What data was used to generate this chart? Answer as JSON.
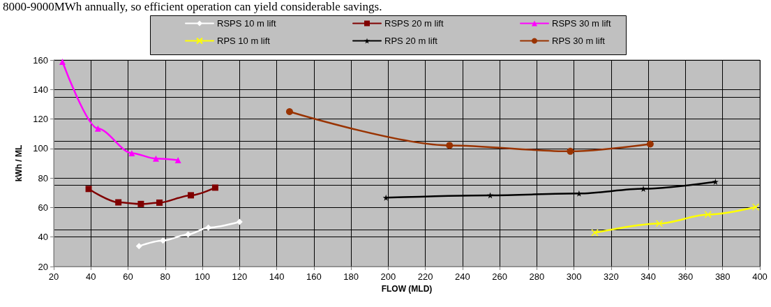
{
  "chart_data": {
    "type": "line",
    "annotations": [
      "8000-9000MWh annually, so efficient operation can yield considerable savings."
    ],
    "xlabel": "FLOW (MLD)",
    "ylabel": "kWh / ML",
    "xlim": [
      20,
      400
    ],
    "xticks": [
      20,
      40,
      60,
      80,
      100,
      120,
      140,
      160,
      180,
      200,
      220,
      240,
      260,
      280,
      300,
      320,
      340,
      360,
      380,
      400
    ],
    "ylim": [
      20,
      160
    ],
    "yticks": [
      20,
      40,
      60,
      80,
      100,
      120,
      140,
      160
    ],
    "grid": true,
    "legend": "top",
    "line_style": "solid",
    "series": [
      {
        "name": "RSPS 10 m lift",
        "color": "#ffffff",
        "marker": "diamond",
        "x": [
          65.9,
          78.8,
          92.3,
          103.2,
          120.0
        ],
        "values": [
          33.8,
          37.6,
          41.8,
          46.4,
          50.3
        ]
      },
      {
        "name": "RSPS 20 m lift",
        "color": "#800000",
        "marker": "square",
        "x": [
          38.8,
          54.8,
          66.9,
          76.9,
          93.8,
          106.9
        ],
        "values": [
          72.6,
          63.5,
          62.4,
          63.3,
          68.3,
          73.5
        ]
      },
      {
        "name": "RSPS 30 m lift",
        "color": "#ff00ff",
        "marker": "triangle",
        "x": [
          24.7,
          43.8,
          62.0,
          75.0,
          86.9
        ],
        "values": [
          158.8,
          113.5,
          96.9,
          93.2,
          92.1
        ]
      },
      {
        "name": "RPS 10 m lift",
        "color": "#ffff00",
        "marker": "cross",
        "x": [
          311.2,
          345.9,
          372.1,
          397.8
        ],
        "values": [
          42.9,
          49.2,
          55.2,
          60.3
        ]
      },
      {
        "name": "RPS 20 m lift",
        "color": "#000000",
        "marker": "star",
        "x": [
          198.8,
          254.9,
          302.7,
          337.3,
          376.1
        ],
        "values": [
          66.7,
          68.3,
          69.5,
          72.7,
          77.5
        ]
      },
      {
        "name": "RPS 30 m lift",
        "color": "#993300",
        "marker": "circle",
        "x": [
          146.9,
          233.0,
          298.0,
          341.0
        ],
        "values": [
          125.0,
          102.1,
          98.1,
          103.0
        ]
      }
    ]
  }
}
